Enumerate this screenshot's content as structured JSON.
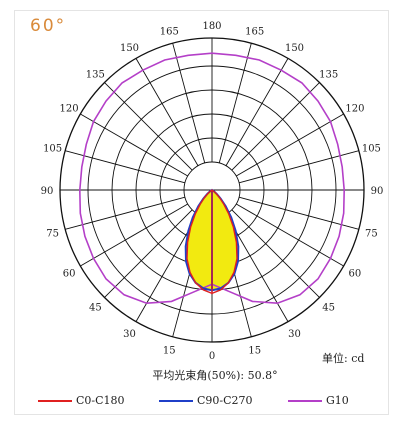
{
  "beam_label": "60°",
  "unit_label": "单位: cd",
  "beam_angle_text": "平均光束角(50%): 50.8°",
  "colors": {
    "c0_c180": "#e02020",
    "c90_c270": "#1f3fc8",
    "g10": "#b43fc8",
    "fill": "#f2ea10",
    "grid": "#111111",
    "label_orange": "#d98a3a"
  },
  "chart_data": {
    "type": "polar",
    "angle_tick_labels": [
      "0",
      "15",
      "30",
      "45",
      "60",
      "75",
      "90",
      "105",
      "120",
      "135",
      "150",
      "165",
      "180"
    ],
    "legend": [
      {
        "name": "C0-C180",
        "color": "#e02020"
      },
      {
        "name": "C90-C270",
        "color": "#1f3fc8"
      },
      {
        "name": "G10",
        "color": "#b43fc8"
      }
    ],
    "series": [
      {
        "name": "C0-C180",
        "angles_deg": [
          0,
          5,
          10,
          15,
          20,
          25,
          30,
          35,
          40,
          45,
          50,
          55,
          60
        ],
        "values_rel": [
          0.68,
          0.66,
          0.62,
          0.56,
          0.48,
          0.38,
          0.28,
          0.19,
          0.12,
          0.07,
          0.03,
          0.01,
          0.0
        ]
      },
      {
        "name": "C90-C270",
        "angles_deg": [
          0,
          5,
          10,
          15,
          20,
          25,
          30,
          35,
          40,
          45,
          50,
          55,
          60
        ],
        "values_rel": [
          0.66,
          0.65,
          0.62,
          0.57,
          0.5,
          0.41,
          0.31,
          0.22,
          0.14,
          0.08,
          0.04,
          0.015,
          0.0
        ]
      },
      {
        "name": "G10",
        "angles_deg": [
          0,
          10,
          20,
          30,
          40,
          50,
          60,
          70,
          80,
          90,
          100,
          110,
          120,
          130,
          140,
          150,
          160,
          170,
          180
        ],
        "values_rel": [
          0.62,
          0.68,
          0.78,
          0.86,
          0.9,
          0.91,
          0.9,
          0.89,
          0.88,
          0.87,
          0.87,
          0.88,
          0.9,
          0.91,
          0.92,
          0.91,
          0.91,
          0.9,
          0.9
        ]
      }
    ]
  }
}
